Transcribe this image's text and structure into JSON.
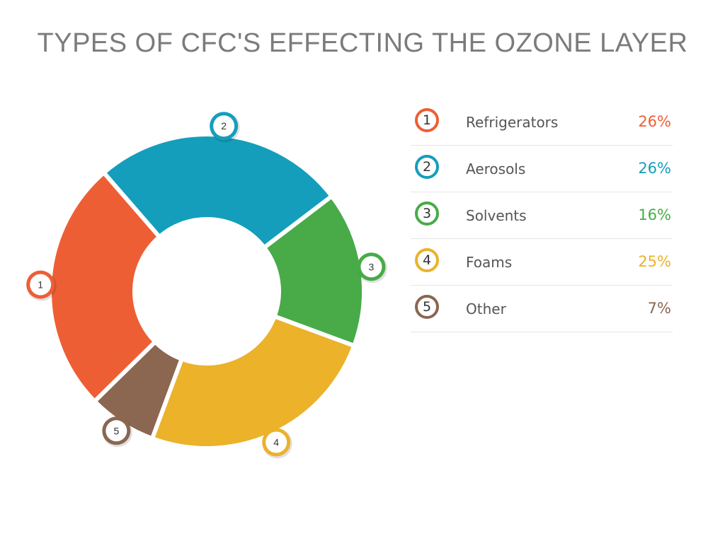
{
  "title": "TYPES OF CFC'S EFFECTING THE OZONE LAYER",
  "chart_data": {
    "type": "pie",
    "title": "TYPES OF CFC'S EFFECTING THE OZONE LAYER",
    "legend_position": "right",
    "slices": [
      {
        "marker": "1",
        "label": "Refrigerators",
        "value": 26,
        "value_label": "26%",
        "color": "#ee5e35"
      },
      {
        "marker": "2",
        "label": "Aerosols",
        "value": 26,
        "value_label": "26%",
        "color": "#149ebc"
      },
      {
        "marker": "3",
        "label": "Solvents",
        "value": 16,
        "value_label": "16%",
        "color": "#48ab48"
      },
      {
        "marker": "4",
        "label": "Foams",
        "value": 25,
        "value_label": "25%",
        "color": "#ebb22a"
      },
      {
        "marker": "5",
        "label": "Other",
        "value": 7,
        "value_label": "7%",
        "color": "#8b6651"
      }
    ]
  }
}
